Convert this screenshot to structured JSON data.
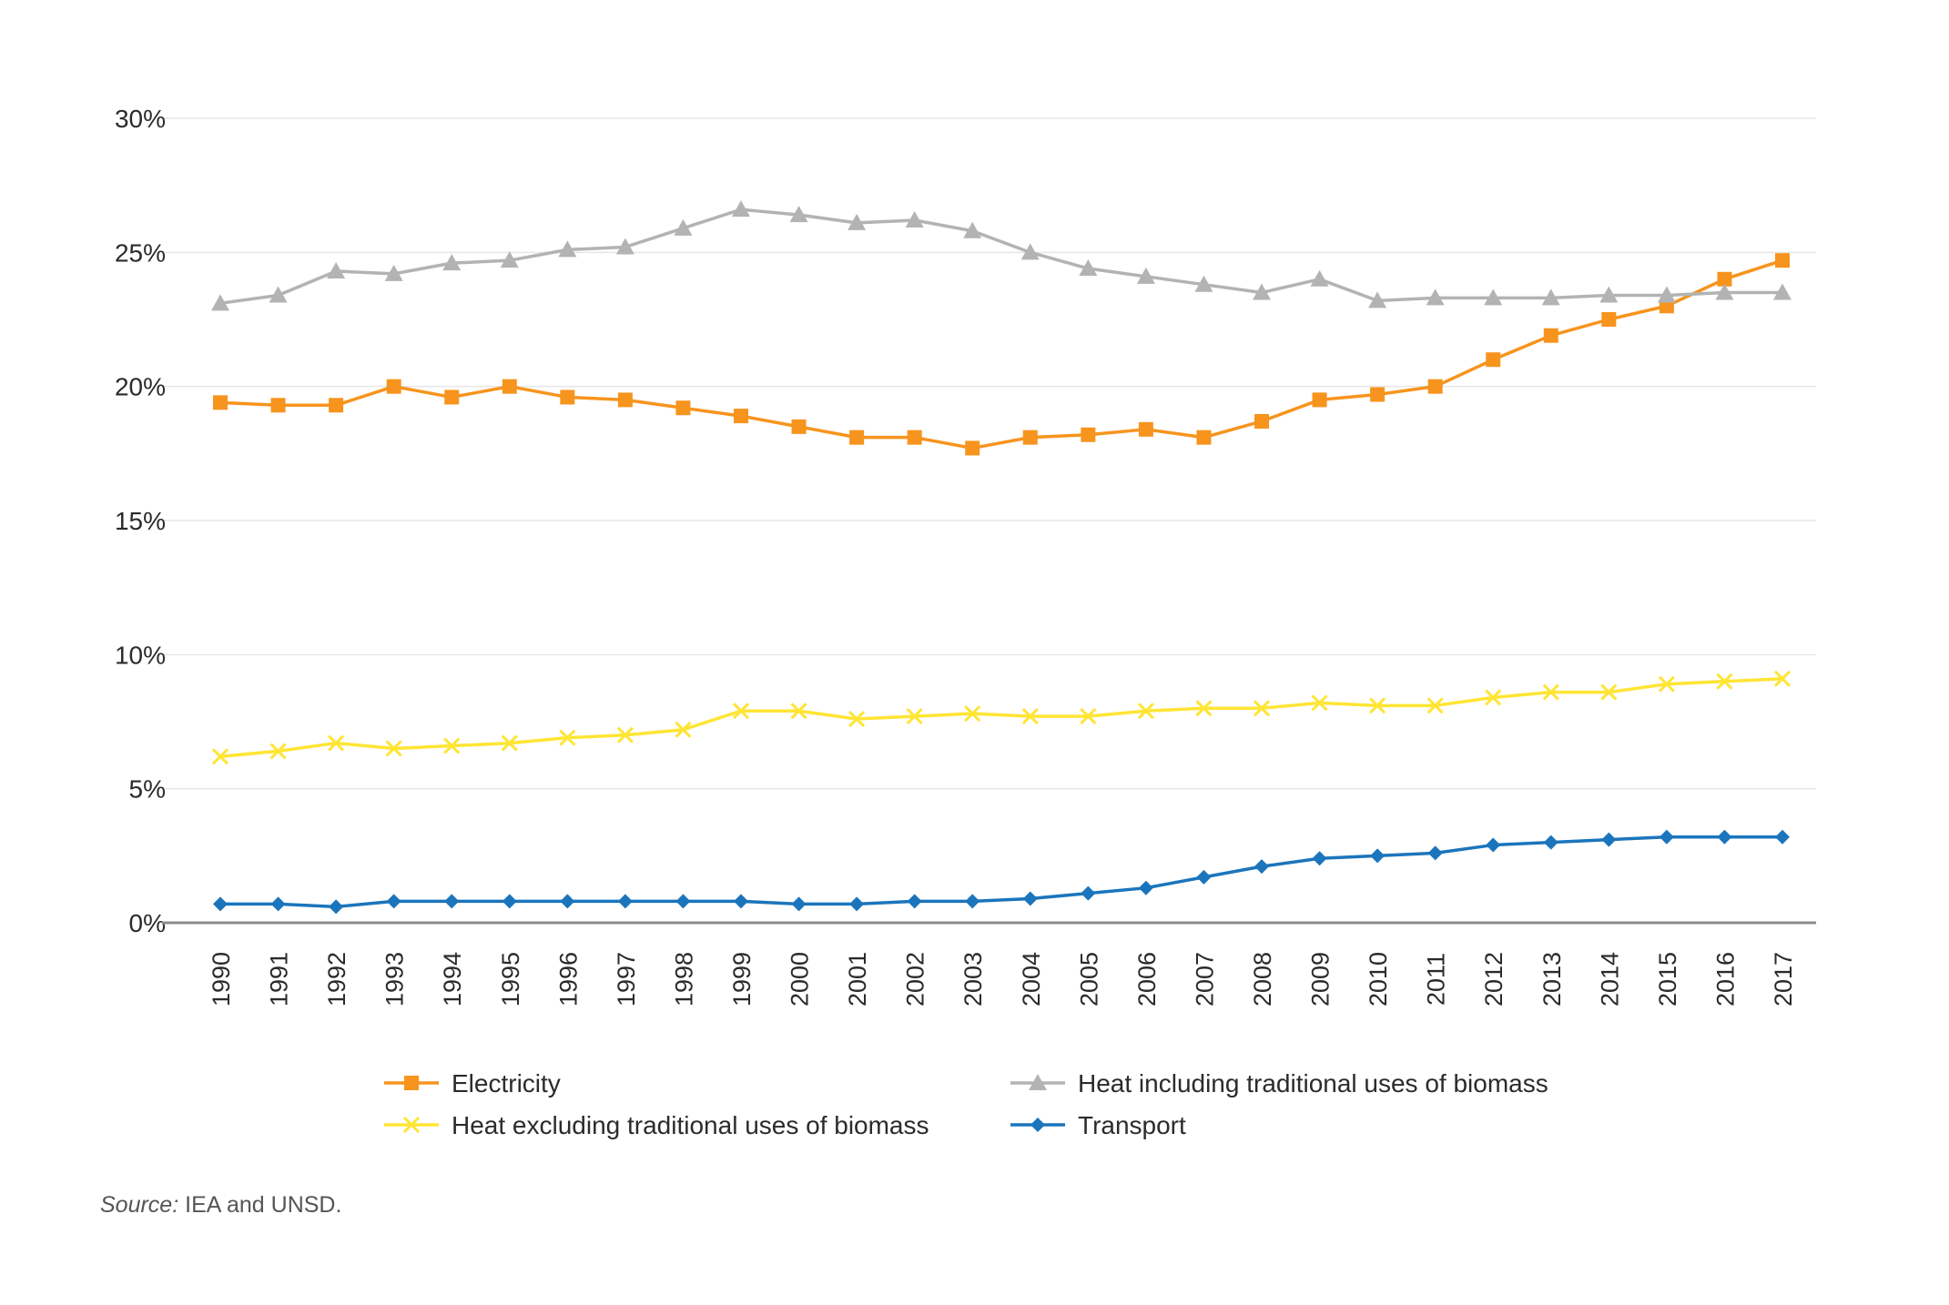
{
  "chart_data": {
    "type": "line",
    "title": "",
    "xlabel": "",
    "ylabel": "",
    "categories": [
      "1990",
      "1991",
      "1992",
      "1993",
      "1994",
      "1995",
      "1996",
      "1997",
      "1998",
      "1999",
      "2000",
      "2001",
      "2002",
      "2003",
      "2004",
      "2005",
      "2006",
      "2007",
      "2008",
      "2009",
      "2010",
      "2011",
      "2012",
      "2013",
      "2014",
      "2015",
      "2016",
      "2017"
    ],
    "y_ticks": [
      "0%",
      "5%",
      "10%",
      "15%",
      "20%",
      "25%",
      "30%"
    ],
    "ylim": [
      0,
      30
    ],
    "y_unit": "%",
    "grid": true,
    "legend_placement": "bottom",
    "series": [
      {
        "name": "Electricity",
        "color": "#f7941d",
        "marker": "square",
        "values": [
          19.4,
          19.3,
          19.3,
          20.0,
          19.6,
          20.0,
          19.6,
          19.5,
          19.2,
          18.9,
          18.5,
          18.1,
          18.1,
          17.7,
          18.1,
          18.2,
          18.4,
          18.1,
          18.7,
          19.5,
          19.7,
          20.0,
          21.0,
          21.9,
          22.5,
          23.0,
          24.0,
          24.7
        ]
      },
      {
        "name": "Heat including traditional uses of biomass",
        "color": "#b3b3b3",
        "marker": "triangle",
        "values": [
          23.1,
          23.4,
          24.3,
          24.2,
          24.6,
          24.7,
          25.1,
          25.2,
          25.9,
          26.6,
          26.4,
          26.1,
          26.2,
          25.8,
          25.0,
          24.4,
          24.1,
          23.8,
          23.5,
          24.0,
          23.2,
          23.3,
          23.3,
          23.3,
          23.4,
          23.4,
          23.5,
          23.5
        ]
      },
      {
        "name": "Heat excluding traditional uses of biomass",
        "color": "#ffe534",
        "marker": "x",
        "values": [
          6.2,
          6.4,
          6.7,
          6.5,
          6.6,
          6.7,
          6.9,
          7.0,
          7.2,
          7.9,
          7.9,
          7.6,
          7.7,
          7.8,
          7.7,
          7.7,
          7.9,
          8.0,
          8.0,
          8.2,
          8.1,
          8.1,
          8.4,
          8.6,
          8.6,
          8.9,
          9.0,
          9.1
        ]
      },
      {
        "name": "Transport",
        "color": "#1b75bc",
        "marker": "diamond",
        "values": [
          0.7,
          0.7,
          0.6,
          0.8,
          0.8,
          0.8,
          0.8,
          0.8,
          0.8,
          0.8,
          0.7,
          0.7,
          0.8,
          0.8,
          0.9,
          1.1,
          1.3,
          1.7,
          2.1,
          2.4,
          2.5,
          2.6,
          2.9,
          3.0,
          3.1,
          3.2,
          3.2,
          3.2
        ]
      }
    ]
  },
  "legend": {
    "items": [
      {
        "label": "Electricity",
        "series": 0
      },
      {
        "label": "Heat including traditional uses of biomass",
        "series": 1
      },
      {
        "label": "Heat excluding traditional uses of biomass",
        "series": 2
      },
      {
        "label": "Transport",
        "series": 3
      }
    ]
  },
  "source": {
    "label": "Source:",
    "text": " IEA and UNSD."
  }
}
